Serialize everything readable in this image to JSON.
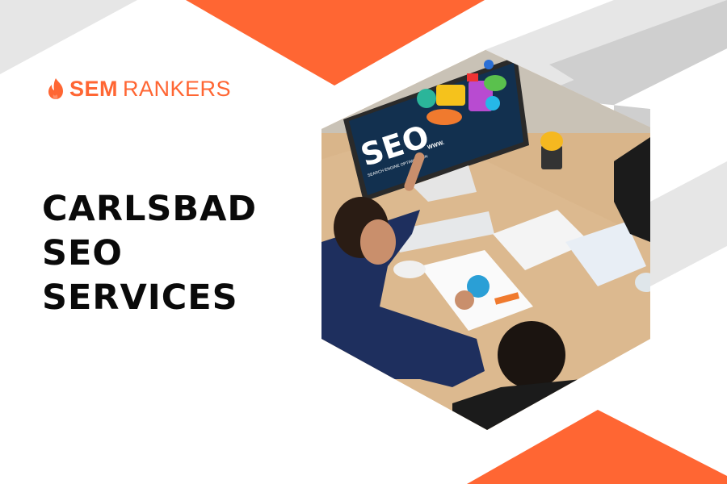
{
  "brand": {
    "logo_text_bold": "SEM",
    "logo_text_regular": "RANKERS",
    "logo_icon": "flame-icon",
    "accent_color": "#ff6633"
  },
  "headline": {
    "lines": [
      "CARLSBAD",
      "SEO",
      "SERVICES"
    ]
  },
  "photo": {
    "description_icon": "business-meeting-photo",
    "screen_text": "SEO",
    "screen_subtext": "SEARCH ENGINE OPTIMIZATION",
    "screen_url": "WWW."
  },
  "colors": {
    "orange": "#ff6633",
    "light_gray": "#e6e6e6",
    "mid_gray": "#cfcfcf",
    "text": "#0a0a0a"
  }
}
